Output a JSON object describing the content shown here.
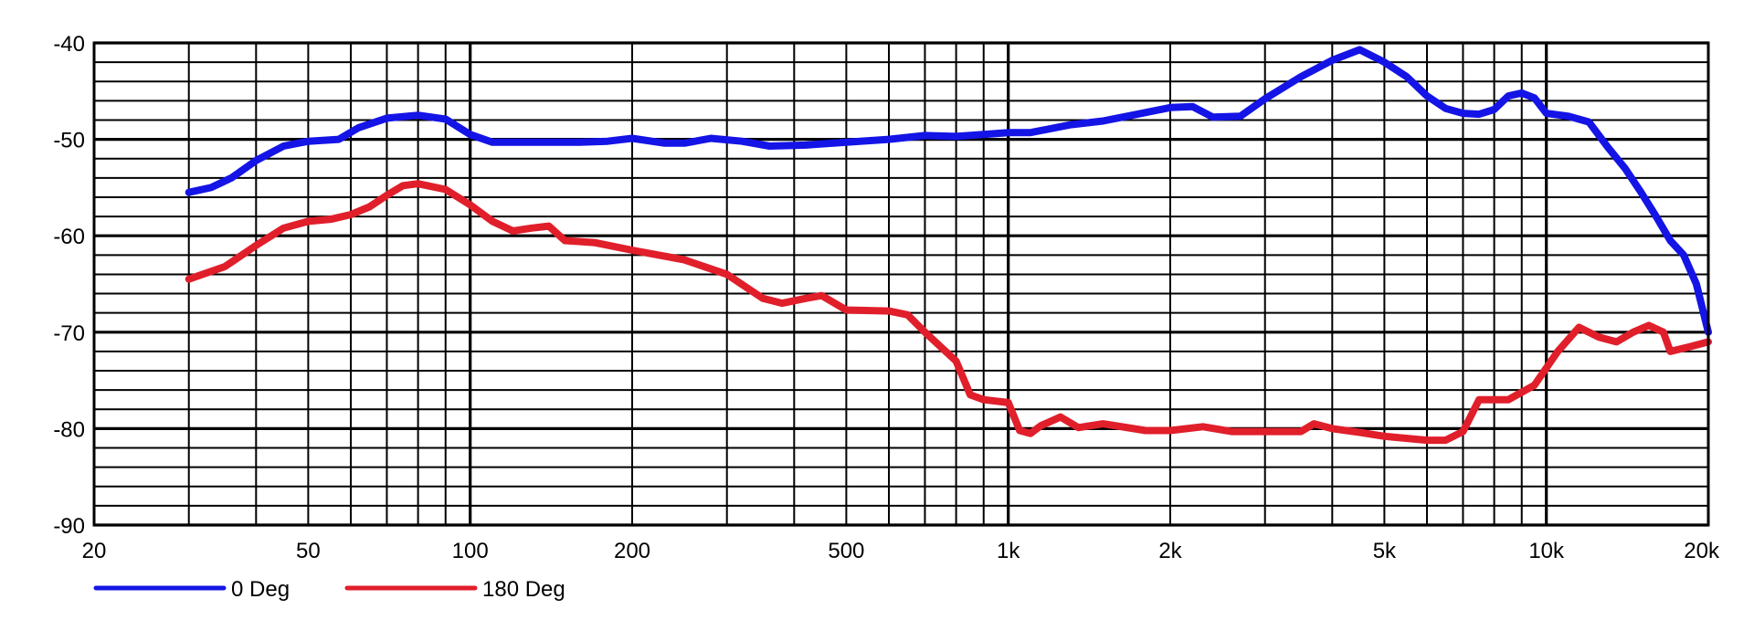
{
  "chart_data": {
    "type": "line",
    "title": "",
    "xlabel": "",
    "ylabel": "",
    "x_scale": "log",
    "xlim": [
      20,
      20000
    ],
    "ylim": [
      -90,
      -40
    ],
    "grid": true,
    "legend": "bottom-left",
    "x_tick_values": [
      20,
      50,
      100,
      200,
      500,
      1000,
      2000,
      5000,
      10000,
      20000
    ],
    "x_tick_labels": [
      "20",
      "50",
      "100",
      "200",
      "500",
      "1k",
      "2k",
      "5k",
      "10k",
      "20k"
    ],
    "y_tick_values": [
      -40,
      -50,
      -60,
      -70,
      -80,
      -90
    ],
    "y_tick_labels": [
      "-40",
      "-50",
      "-60",
      "-70",
      "-80",
      "-90"
    ],
    "series": [
      {
        "name": "0 Deg",
        "color": "#1414e6",
        "points": [
          [
            30,
            -55.5
          ],
          [
            33,
            -55
          ],
          [
            36,
            -54
          ],
          [
            40,
            -52.2
          ],
          [
            45,
            -50.7
          ],
          [
            50,
            -50.2
          ],
          [
            57,
            -50
          ],
          [
            62,
            -48.8
          ],
          [
            70,
            -47.8
          ],
          [
            80,
            -47.5
          ],
          [
            90,
            -47.9
          ],
          [
            100,
            -49.5
          ],
          [
            110,
            -50.3
          ],
          [
            130,
            -50.3
          ],
          [
            160,
            -50.3
          ],
          [
            180,
            -50.2
          ],
          [
            200,
            -49.9
          ],
          [
            230,
            -50.4
          ],
          [
            250,
            -50.4
          ],
          [
            280,
            -49.9
          ],
          [
            320,
            -50.2
          ],
          [
            360,
            -50.7
          ],
          [
            420,
            -50.6
          ],
          [
            500,
            -50.3
          ],
          [
            600,
            -50
          ],
          [
            700,
            -49.6
          ],
          [
            800,
            -49.7
          ],
          [
            900,
            -49.5
          ],
          [
            1000,
            -49.3
          ],
          [
            1100,
            -49.3
          ],
          [
            1300,
            -48.5
          ],
          [
            1500,
            -48.1
          ],
          [
            1700,
            -47.5
          ],
          [
            2000,
            -46.7
          ],
          [
            2200,
            -46.6
          ],
          [
            2400,
            -47.7
          ],
          [
            2700,
            -47.6
          ],
          [
            3000,
            -45.8
          ],
          [
            3500,
            -43.5
          ],
          [
            4000,
            -41.8
          ],
          [
            4500,
            -40.7
          ],
          [
            5000,
            -42
          ],
          [
            5500,
            -43.5
          ],
          [
            6000,
            -45.5
          ],
          [
            6500,
            -46.8
          ],
          [
            7000,
            -47.3
          ],
          [
            7500,
            -47.4
          ],
          [
            8000,
            -46.9
          ],
          [
            8500,
            -45.5
          ],
          [
            9000,
            -45.2
          ],
          [
            9500,
            -45.7
          ],
          [
            10000,
            -47.3
          ],
          [
            11000,
            -47.6
          ],
          [
            12000,
            -48.2
          ],
          [
            13000,
            -50.8
          ],
          [
            14000,
            -53
          ],
          [
            15000,
            -55.5
          ],
          [
            16000,
            -58
          ],
          [
            17000,
            -60.5
          ],
          [
            18000,
            -62
          ],
          [
            19000,
            -65
          ],
          [
            20000,
            -70
          ]
        ]
      },
      {
        "name": "180 Deg",
        "color": "#e01f2b",
        "points": [
          [
            30,
            -64.5
          ],
          [
            35,
            -63.2
          ],
          [
            40,
            -61
          ],
          [
            45,
            -59.2
          ],
          [
            50,
            -58.5
          ],
          [
            55,
            -58.3
          ],
          [
            60,
            -57.8
          ],
          [
            65,
            -57
          ],
          [
            70,
            -55.8
          ],
          [
            75,
            -54.8
          ],
          [
            80,
            -54.6
          ],
          [
            90,
            -55.2
          ],
          [
            100,
            -56.8
          ],
          [
            110,
            -58.5
          ],
          [
            120,
            -59.5
          ],
          [
            130,
            -59.2
          ],
          [
            140,
            -59
          ],
          [
            150,
            -60.5
          ],
          [
            170,
            -60.7
          ],
          [
            200,
            -61.5
          ],
          [
            250,
            -62.5
          ],
          [
            300,
            -64
          ],
          [
            350,
            -66.5
          ],
          [
            380,
            -67
          ],
          [
            420,
            -66.5
          ],
          [
            450,
            -66.2
          ],
          [
            500,
            -67.7
          ],
          [
            600,
            -67.8
          ],
          [
            650,
            -68.2
          ],
          [
            700,
            -70
          ],
          [
            800,
            -73
          ],
          [
            850,
            -76.5
          ],
          [
            900,
            -77
          ],
          [
            1000,
            -77.3
          ],
          [
            1050,
            -80.2
          ],
          [
            1100,
            -80.5
          ],
          [
            1150,
            -79.7
          ],
          [
            1250,
            -78.8
          ],
          [
            1350,
            -79.9
          ],
          [
            1500,
            -79.5
          ],
          [
            1800,
            -80.2
          ],
          [
            2000,
            -80.2
          ],
          [
            2300,
            -79.8
          ],
          [
            2600,
            -80.3
          ],
          [
            3000,
            -80.3
          ],
          [
            3500,
            -80.3
          ],
          [
            3700,
            -79.5
          ],
          [
            4000,
            -80
          ],
          [
            4500,
            -80.4
          ],
          [
            5000,
            -80.8
          ],
          [
            6000,
            -81.2
          ],
          [
            6500,
            -81.2
          ],
          [
            7000,
            -80.3
          ],
          [
            7500,
            -77
          ],
          [
            8500,
            -77
          ],
          [
            9500,
            -75.5
          ],
          [
            10500,
            -72
          ],
          [
            11500,
            -69.5
          ],
          [
            12500,
            -70.5
          ],
          [
            13500,
            -71
          ],
          [
            14500,
            -70
          ],
          [
            15500,
            -69.3
          ],
          [
            16500,
            -70
          ],
          [
            17000,
            -72
          ],
          [
            18500,
            -71.5
          ],
          [
            20000,
            -71
          ]
        ]
      }
    ]
  }
}
